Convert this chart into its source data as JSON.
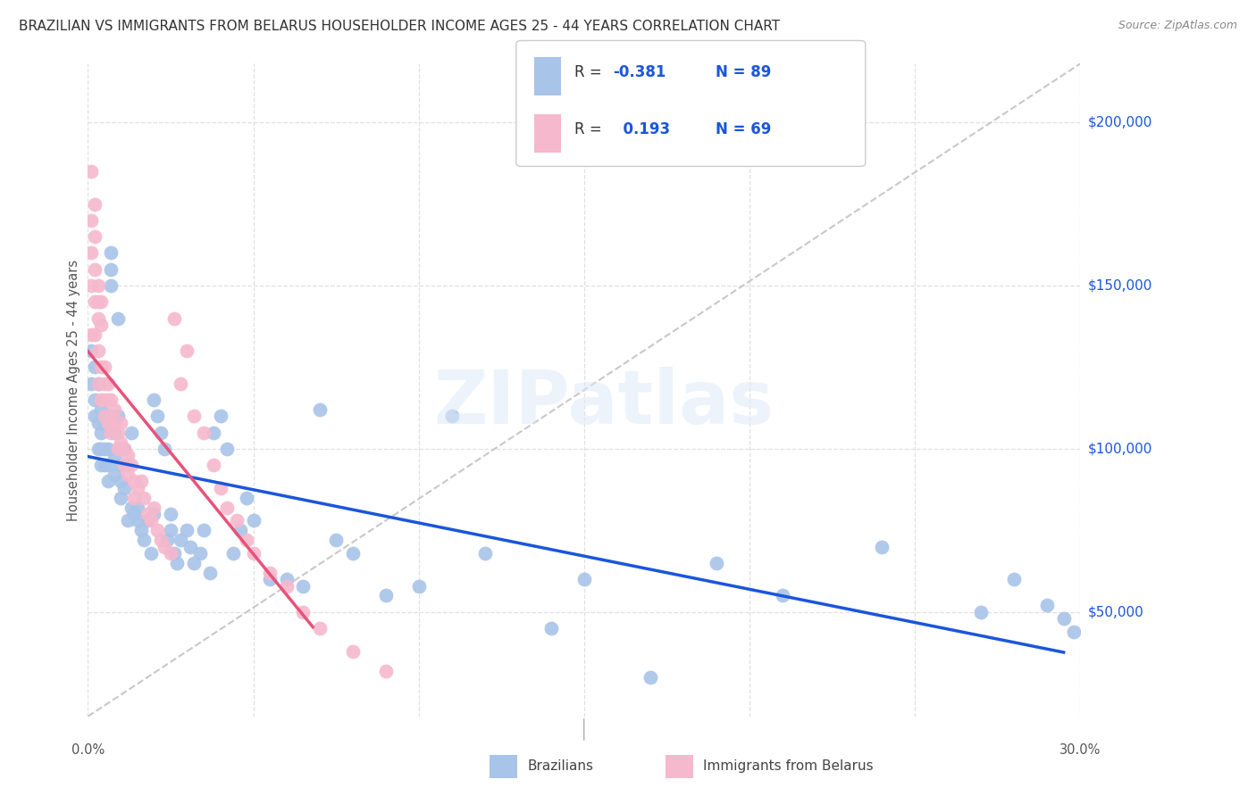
{
  "title": "BRAZILIAN VS IMMIGRANTS FROM BELARUS HOUSEHOLDER INCOME AGES 25 - 44 YEARS CORRELATION CHART",
  "source": "Source: ZipAtlas.com",
  "ylabel": "Householder Income Ages 25 - 44 years",
  "xlim": [
    0.0,
    0.3
  ],
  "ylim": [
    18000,
    218000
  ],
  "yticks": [
    50000,
    100000,
    150000,
    200000
  ],
  "ytick_labels": [
    "$50,000",
    "$100,000",
    "$150,000",
    "$200,000"
  ],
  "blue_color": "#a8c4e8",
  "pink_color": "#f5b8cc",
  "blue_line_color": "#1a56db",
  "pink_line_color": "#e8527a",
  "diagonal_color": "#c8c8c8",
  "background_color": "#ffffff",
  "watermark": "ZIPatlas",
  "blue_scatter_x": [
    0.001,
    0.001,
    0.002,
    0.002,
    0.002,
    0.003,
    0.003,
    0.003,
    0.004,
    0.004,
    0.004,
    0.004,
    0.005,
    0.005,
    0.005,
    0.005,
    0.006,
    0.006,
    0.006,
    0.007,
    0.007,
    0.007,
    0.008,
    0.008,
    0.008,
    0.009,
    0.009,
    0.009,
    0.01,
    0.01,
    0.01,
    0.011,
    0.011,
    0.012,
    0.012,
    0.013,
    0.013,
    0.014,
    0.015,
    0.015,
    0.016,
    0.017,
    0.018,
    0.019,
    0.02,
    0.02,
    0.021,
    0.022,
    0.023,
    0.024,
    0.025,
    0.025,
    0.026,
    0.027,
    0.028,
    0.03,
    0.031,
    0.032,
    0.034,
    0.035,
    0.037,
    0.038,
    0.04,
    0.042,
    0.044,
    0.046,
    0.048,
    0.05,
    0.055,
    0.06,
    0.065,
    0.07,
    0.075,
    0.08,
    0.09,
    0.1,
    0.11,
    0.12,
    0.14,
    0.15,
    0.17,
    0.19,
    0.21,
    0.24,
    0.27,
    0.28,
    0.29,
    0.295,
    0.298
  ],
  "blue_scatter_y": [
    120000,
    130000,
    110000,
    125000,
    115000,
    100000,
    108000,
    120000,
    105000,
    112000,
    100000,
    95000,
    108000,
    100000,
    95000,
    110000,
    100000,
    95000,
    90000,
    155000,
    150000,
    160000,
    105000,
    98000,
    92000,
    140000,
    100000,
    110000,
    85000,
    90000,
    95000,
    100000,
    88000,
    95000,
    78000,
    82000,
    105000,
    80000,
    78000,
    82000,
    75000,
    72000,
    78000,
    68000,
    115000,
    80000,
    110000,
    105000,
    100000,
    72000,
    75000,
    80000,
    68000,
    65000,
    72000,
    75000,
    70000,
    65000,
    68000,
    75000,
    62000,
    105000,
    110000,
    100000,
    68000,
    75000,
    85000,
    78000,
    60000,
    60000,
    58000,
    112000,
    72000,
    68000,
    55000,
    58000,
    110000,
    68000,
    45000,
    60000,
    30000,
    65000,
    55000,
    70000,
    50000,
    60000,
    52000,
    48000,
    44000
  ],
  "pink_scatter_x": [
    0.001,
    0.001,
    0.001,
    0.001,
    0.001,
    0.002,
    0.002,
    0.002,
    0.002,
    0.002,
    0.003,
    0.003,
    0.003,
    0.003,
    0.003,
    0.004,
    0.004,
    0.004,
    0.004,
    0.005,
    0.005,
    0.005,
    0.005,
    0.006,
    0.006,
    0.006,
    0.007,
    0.007,
    0.007,
    0.008,
    0.008,
    0.009,
    0.009,
    0.01,
    0.01,
    0.011,
    0.011,
    0.012,
    0.012,
    0.013,
    0.014,
    0.014,
    0.015,
    0.016,
    0.017,
    0.018,
    0.019,
    0.02,
    0.021,
    0.022,
    0.023,
    0.025,
    0.026,
    0.028,
    0.03,
    0.032,
    0.035,
    0.038,
    0.04,
    0.042,
    0.045,
    0.048,
    0.05,
    0.055,
    0.06,
    0.065,
    0.07,
    0.08,
    0.09
  ],
  "pink_scatter_y": [
    185000,
    170000,
    160000,
    150000,
    135000,
    175000,
    165000,
    155000,
    145000,
    135000,
    150000,
    145000,
    140000,
    130000,
    120000,
    145000,
    138000,
    125000,
    115000,
    125000,
    120000,
    115000,
    110000,
    120000,
    115000,
    108000,
    115000,
    110000,
    105000,
    112000,
    108000,
    105000,
    100000,
    108000,
    102000,
    100000,
    95000,
    98000,
    92000,
    95000,
    90000,
    85000,
    88000,
    90000,
    85000,
    80000,
    78000,
    82000,
    75000,
    72000,
    70000,
    68000,
    140000,
    120000,
    130000,
    110000,
    105000,
    95000,
    88000,
    82000,
    78000,
    72000,
    68000,
    62000,
    58000,
    50000,
    45000,
    38000,
    32000
  ]
}
